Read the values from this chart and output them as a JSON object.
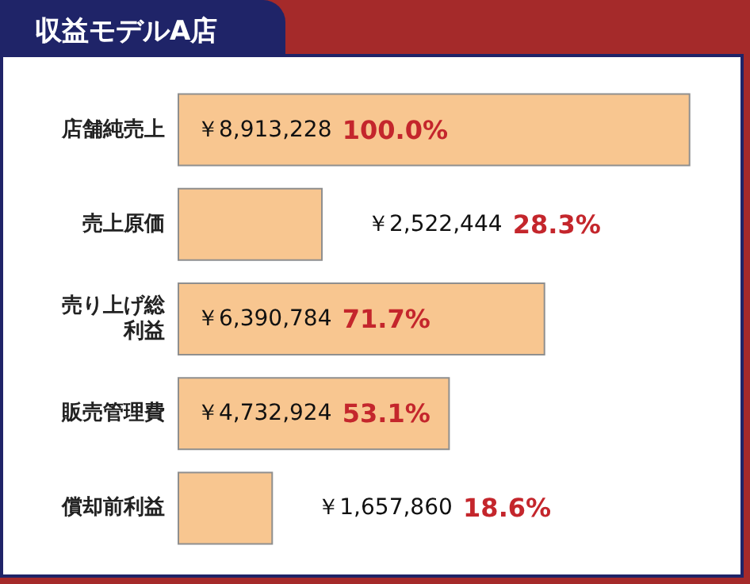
{
  "chart_data": {
    "type": "bar",
    "orientation": "horizontal",
    "title": "収益モデルA店",
    "categories": [
      "店舗純売上",
      "売上原価",
      "売り上げ総利益",
      "販売管理費",
      "償却前利益"
    ],
    "values": [
      8913228,
      2522444,
      6390784,
      4732924,
      1657860
    ],
    "color": "#f8c690",
    "value_labels": [
      "￥8,913,228",
      "￥2,522,444",
      "￥6,390,784",
      "￥4,732,924",
      "￥1,657,860"
    ],
    "annotations": [
      "100.0%",
      "28.3%",
      "71.7%",
      "53.1%",
      "18.6%"
    ]
  }
}
